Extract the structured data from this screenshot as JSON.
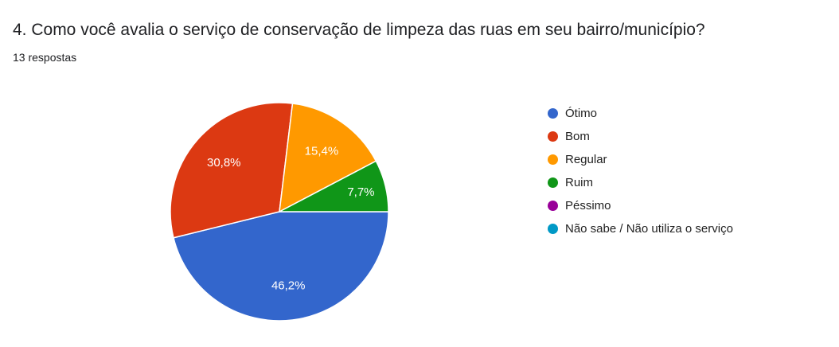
{
  "question": {
    "title": "4. Como você avalia o serviço de conservação de limpeza das ruas em seu bairro/município?",
    "responses": "13 respostas"
  },
  "chart_data": {
    "type": "pie",
    "title": "4. Como você avalia o serviço de conservação de limpeza das ruas em seu bairro/município?",
    "legend_position": "right",
    "slices": [
      {
        "label": "Ótimo",
        "value": 46.2,
        "display": "46,2%",
        "color": "#3366cc"
      },
      {
        "label": "Bom",
        "value": 30.8,
        "display": "30,8%",
        "color": "#dc3912"
      },
      {
        "label": "Regular",
        "value": 15.4,
        "display": "15,4%",
        "color": "#ff9900"
      },
      {
        "label": "Ruim",
        "value": 7.7,
        "display": "7,7%",
        "color": "#109618"
      },
      {
        "label": "Péssimo",
        "value": 0,
        "display": "",
        "color": "#990099"
      },
      {
        "label": "Não sabe / Não utiliza o serviço",
        "value": 0,
        "display": "",
        "color": "#0099c6"
      }
    ]
  }
}
